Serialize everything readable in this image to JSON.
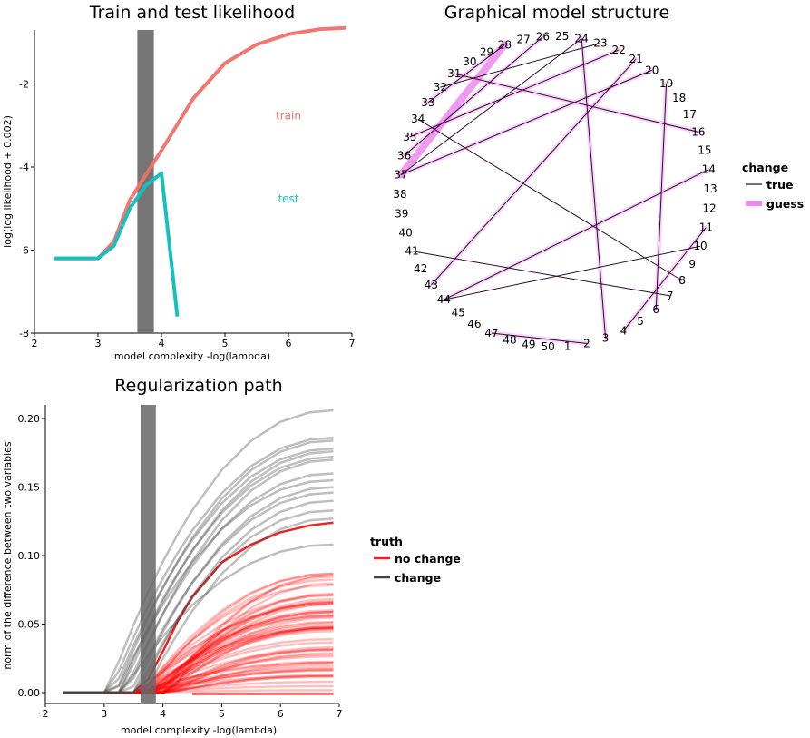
{
  "chart_data": [
    {
      "id": "likelihood",
      "type": "line",
      "title": "Train and test likelihood",
      "xlabel": "model complexity -log(lambda)",
      "ylabel": "log(log.likelihood + 0.002)",
      "xlim": [
        2,
        7
      ],
      "ylim": [
        -8,
        -0.7
      ],
      "xticks": [
        2,
        3,
        4,
        5,
        6,
        7
      ],
      "yticks": [
        -8,
        -6,
        -4,
        -2
      ],
      "selected_band": [
        3.62,
        3.88
      ],
      "series": [
        {
          "name": "train",
          "color": "#f07068",
          "x": [
            2.3,
            3.0,
            3.25,
            3.5,
            3.75,
            4.0,
            4.5,
            5.0,
            5.5,
            6.0,
            6.5,
            6.9
          ],
          "y": [
            -6.2,
            -6.2,
            -5.8,
            -4.8,
            -4.2,
            -3.6,
            -2.35,
            -1.5,
            -1.05,
            -0.8,
            -0.68,
            -0.65
          ]
        },
        {
          "name": "test",
          "color": "#18bfbf",
          "x": [
            2.3,
            3.0,
            3.25,
            3.5,
            3.75,
            4.0,
            4.25
          ],
          "y": [
            -6.2,
            -6.2,
            -5.9,
            -5.0,
            -4.45,
            -4.15,
            -7.6
          ]
        }
      ],
      "series_labels": [
        {
          "text": "train",
          "x": 6.0,
          "y": -2.85
        },
        {
          "text": "test",
          "x": 6.0,
          "y": -4.85
        }
      ]
    },
    {
      "id": "graph",
      "type": "network",
      "title": "Graphical model structure",
      "nodes": [
        "1",
        "2",
        "3",
        "4",
        "5",
        "6",
        "7",
        "8",
        "9",
        "10",
        "11",
        "12",
        "13",
        "14",
        "15",
        "16",
        "17",
        "18",
        "19",
        "20",
        "21",
        "22",
        "23",
        "24",
        "25",
        "26",
        "27",
        "28",
        "29",
        "30",
        "31",
        "32",
        "33",
        "34",
        "35",
        "36",
        "37",
        "38",
        "39",
        "40",
        "41",
        "42",
        "43",
        "44",
        "45",
        "46",
        "47",
        "48",
        "49",
        "50"
      ],
      "true_edges": [
        [
          2,
          47
        ],
        [
          3,
          24
        ],
        [
          4,
          11
        ],
        [
          6,
          19
        ],
        [
          8,
          34
        ],
        [
          7,
          41
        ],
        [
          14,
          44
        ],
        [
          10,
          44
        ],
        [
          16,
          31
        ],
        [
          20,
          37
        ],
        [
          21,
          43
        ],
        [
          22,
          35
        ],
        [
          23,
          32
        ],
        [
          24,
          37
        ],
        [
          26,
          36
        ],
        [
          28,
          33
        ]
      ],
      "guess_edges": [
        [
          2,
          47
        ],
        [
          3,
          24
        ],
        [
          4,
          11
        ],
        [
          6,
          19
        ],
        [
          14,
          44
        ],
        [
          21,
          43
        ],
        [
          22,
          35
        ],
        [
          20,
          37
        ],
        [
          16,
          31
        ],
        [
          26,
          36
        ],
        [
          28,
          37
        ],
        [
          28,
          33
        ]
      ],
      "legend": {
        "title": "change",
        "items": [
          {
            "label": "true",
            "color": "#444444"
          },
          {
            "label": "guess",
            "color": "#ee88ee"
          }
        ]
      }
    },
    {
      "id": "path",
      "type": "line",
      "title": "Regularization path",
      "xlabel": "model complexity -log(lambda)",
      "ylabel": "norm of the difference between two variables",
      "xlim": [
        2,
        7
      ],
      "ylim": [
        -0.008,
        0.21
      ],
      "xticks": [
        2,
        3,
        4,
        5,
        6,
        7
      ],
      "yticks": [
        0.0,
        0.05,
        0.1,
        0.15,
        0.2
      ],
      "ytick_labels": [
        "0.00",
        "0.05",
        "0.10",
        "0.15",
        "0.20"
      ],
      "selected_band": [
        3.62,
        3.88
      ],
      "x": [
        2.3,
        3.0,
        3.25,
        3.5,
        3.75,
        4.0,
        4.25,
        4.5,
        5.0,
        5.5,
        6.0,
        6.5,
        6.9
      ],
      "change_finals": [
        0.206,
        0.186,
        0.184,
        0.178,
        0.176,
        0.172,
        0.17,
        0.16,
        0.155,
        0.15,
        0.146,
        0.14,
        0.133,
        0.127,
        0.108
      ],
      "change_starts": [
        3.05,
        3.1,
        3.2,
        3.15,
        3.3,
        3.25,
        3.4,
        3.35,
        3.2,
        3.5,
        3.45,
        3.6,
        3.55,
        3.7,
        3.3
      ],
      "nochange_highlight": {
        "x": [
          2.3,
          3.0,
          3.25,
          3.5,
          3.75,
          4.0,
          4.25,
          4.5,
          5.0,
          5.5,
          6.0,
          6.5,
          6.9
        ],
        "y": [
          0.0,
          0.0,
          0.0,
          0.0,
          0.01,
          0.03,
          0.052,
          0.07,
          0.095,
          0.108,
          0.117,
          0.122,
          0.124
        ]
      },
      "nochange_count": 60,
      "nochange_max_final": 0.09,
      "legend": {
        "title": "truth",
        "items": [
          {
            "label": "no change",
            "color": "#ee2222"
          },
          {
            "label": "change",
            "color": "#444444"
          }
        ]
      }
    }
  ]
}
